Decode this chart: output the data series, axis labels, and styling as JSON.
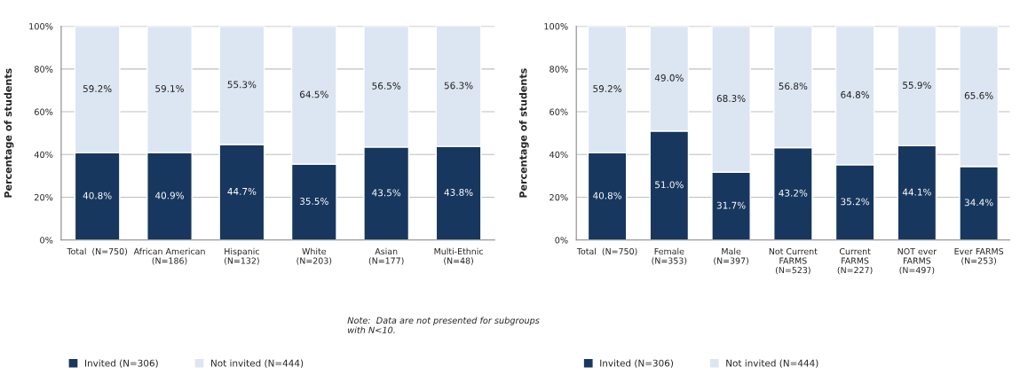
{
  "chart_data": [
    {
      "type": "bar",
      "stacked": true,
      "categories": [
        "Total  (N=750)",
        "African American\n(N=186)",
        "Hispanic\n(N=132)",
        "White\n(N=203)",
        "Asian\n(N=177)",
        "Multi-Ethnic\n(N=48)"
      ],
      "series": [
        {
          "name": "Invited (N=306)",
          "color": "#17375e",
          "values": [
            40.8,
            40.9,
            44.7,
            35.5,
            43.5,
            43.8
          ],
          "value_labels": [
            "40.8%",
            "40.9%",
            "44.7%",
            "35.5%",
            "43.5%",
            "43.8%"
          ]
        },
        {
          "name": "Not invited (N=444)",
          "color": "#dce6f2",
          "values": [
            59.2,
            59.1,
            55.3,
            64.5,
            56.5,
            56.3
          ],
          "value_labels": [
            "59.2%",
            "59.1%",
            "55.3%",
            "64.5%",
            "56.5%",
            "56.3%"
          ]
        }
      ],
      "ylabel": "Percentage of students",
      "ylim": [
        0,
        100
      ],
      "yticks": [
        {
          "value": 0,
          "label": "0%"
        },
        {
          "value": 20,
          "label": "20%"
        },
        {
          "value": 40,
          "label": "40%"
        },
        {
          "value": 60,
          "label": "60%"
        },
        {
          "value": 80,
          "label": "80%"
        },
        {
          "value": 100,
          "label": "100%"
        }
      ],
      "grid": "y",
      "legend": "bottom left",
      "annotations": [
        "Note:  Data are not presented for subgroups\nwith N<10."
      ]
    },
    {
      "type": "bar",
      "stacked": true,
      "categories": [
        "Total  (N=750)",
        "Female\n(N=353)",
        "Male\n(N=397)",
        "Not Current\nFARMS\n(N=523)",
        "Current\nFARMS\n(N=227)",
        "NOT ever\nFARMS\n(N=497)",
        "Ever FARMS\n(N=253)"
      ],
      "series": [
        {
          "name": "Invited (N=306)",
          "color": "#17375e",
          "values": [
            40.8,
            51.0,
            31.7,
            43.2,
            35.2,
            44.1,
            34.4
          ],
          "value_labels": [
            "40.8%",
            "51.0%",
            "31.7%",
            "43.2%",
            "35.2%",
            "44.1%",
            "34.4%"
          ]
        },
        {
          "name": "Not invited (N=444)",
          "color": "#dce6f2",
          "values": [
            59.2,
            49.0,
            68.3,
            56.8,
            64.8,
            55.9,
            65.6
          ],
          "value_labels": [
            "59.2%",
            "49.0%",
            "68.3%",
            "56.8%",
            "64.8%",
            "55.9%",
            "65.6%"
          ]
        }
      ],
      "ylabel": "Percentage of students",
      "ylim": [
        0,
        100
      ],
      "yticks": [
        {
          "value": 0,
          "label": "0%"
        },
        {
          "value": 20,
          "label": "20%"
        },
        {
          "value": 40,
          "label": "40%"
        },
        {
          "value": 60,
          "label": "60%"
        },
        {
          "value": 80,
          "label": "80%"
        },
        {
          "value": 100,
          "label": "100%"
        }
      ],
      "grid": "y",
      "legend": "bottom left"
    }
  ]
}
